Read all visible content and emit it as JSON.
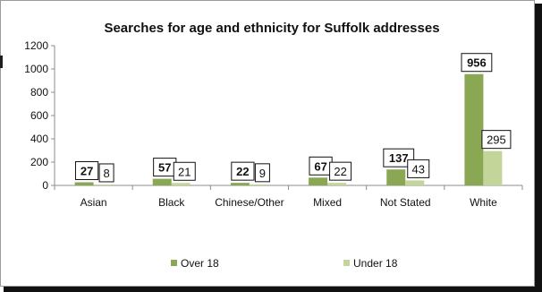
{
  "chart_data": {
    "type": "bar",
    "title": "Searches for age and ethnicity for Suffolk addresses",
    "categories": [
      "Asian",
      "Black",
      "Chinese/Other",
      "Mixed",
      "Not Stated",
      "White"
    ],
    "series": [
      {
        "name": "Over 18",
        "values": [
          27,
          57,
          22,
          67,
          137,
          956
        ],
        "color": "#8aa854"
      },
      {
        "name": "Under 18",
        "values": [
          8,
          21,
          9,
          22,
          43,
          295
        ],
        "color": "#c4d59a"
      }
    ],
    "ylim": [
      0,
      1200
    ],
    "yticks": [
      0,
      200,
      400,
      600,
      800,
      1000,
      1200
    ],
    "grid": false,
    "legend_position": "bottom",
    "data_labels": true
  }
}
